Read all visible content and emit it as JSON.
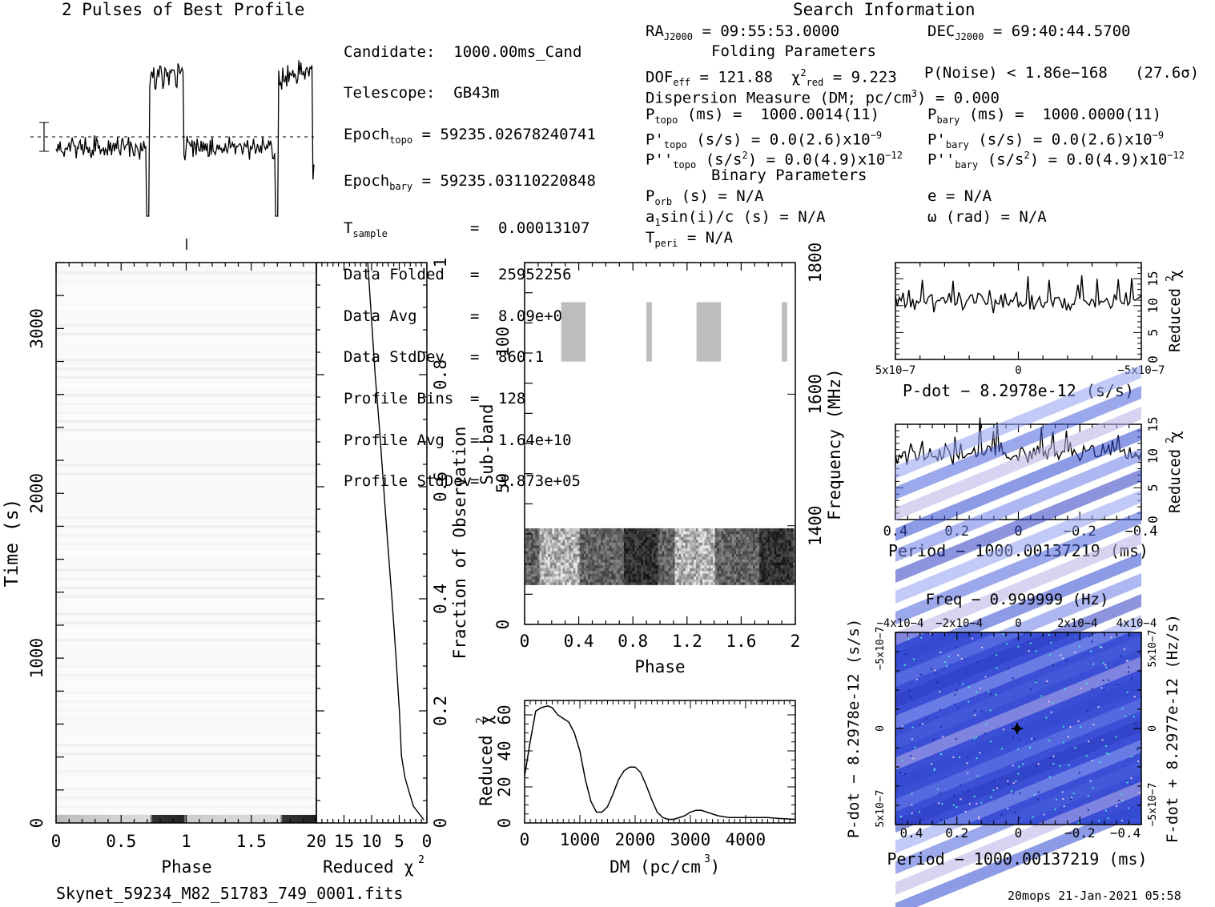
{
  "header": {
    "profile_title": "2 Pulses of Best Profile",
    "search_title": "Search Information",
    "folding_title": "Folding Parameters",
    "binary_title": "Binary Parameters"
  },
  "col1": [
    {
      "label": "Candidate:",
      "value": "1000.00ms_Cand"
    },
    {
      "label": "Telescope:",
      "value": "GB43m"
    },
    {
      "label": "Epoch",
      "sub": "topo",
      "sep": "=",
      "value": "59235.02678240741"
    },
    {
      "label": "Epoch",
      "sub": "bary",
      "sep": "=",
      "value": "59235.03110220848"
    },
    {
      "label": "T",
      "sub": "sample",
      "sep": "=",
      "value": "0.00013107"
    },
    {
      "label": "Data Folded",
      "sep": "=",
      "value": "25952256"
    },
    {
      "label": "Data Avg",
      "sep": "=",
      "value": "8.09e+04"
    },
    {
      "label": "Data StdDev",
      "sep": "=",
      "value": "860.1"
    },
    {
      "label": "Profile Bins",
      "sep": "=",
      "value": "128"
    },
    {
      "label": "Profile Avg",
      "sep": "=",
      "value": "1.64e+10"
    },
    {
      "label": "Profile StdDev",
      "sep": "=",
      "value": "3.873e+05"
    }
  ],
  "search": {
    "ra_label": "RA",
    "ra_sub": "J2000",
    "ra_value": "= 09:55:53.0000",
    "dec_label": "DEC",
    "dec_sub": "J2000",
    "dec_value": "= 69:40:44.5700"
  },
  "folding": {
    "dof_label": "DOF",
    "dof_sub": "eff",
    "dof_value": "= 121.88",
    "chi_label": "χ",
    "chi_sup": "2",
    "chi_sub": "red",
    "chi_value": "= 9.223",
    "noise": "P(Noise) < 1.86e−168   (27.6σ)",
    "dm_text": "Dispersion Measure (DM; pc/cm",
    "dm_sup": "3",
    "dm_value": ") = 0.000",
    "ptopo_label": "P",
    "ptopo_sub": "topo",
    "ptopo_value": "(ms) =  1000.0014(11)",
    "pbary_label": "P",
    "pbary_sub": "bary",
    "pbary_value": "(ms) =  1000.0000(11)",
    "pdtopo_label": "P'",
    "pdtopo_sub": "topo",
    "pdtopo_value": "(s/s) = 0.0(2.6)x10",
    "pdtopo_exp": "−9",
    "pdbary_label": "P'",
    "pdbary_sub": "bary",
    "pdbary_value": "(s/s) = 0.0(2.6)x10",
    "pdbary_exp": "−9",
    "pddtopo_label": "P''",
    "pddtopo_sub": "topo",
    "pddtopo_value": "(s/s",
    "pddtopo_sup": "2",
    "pddtopo_value2": ") = 0.0(4.9)x10",
    "pddtopo_exp": "−12",
    "pddbary_label": "P''",
    "pddbary_sub": "bary",
    "pddbary_value": "(s/s",
    "pddbary_sup": "2",
    "pddbary_value2": ") = 0.0(4.9)x10",
    "pddbary_exp": "−12"
  },
  "binary": {
    "porb_label": "P",
    "porb_sub": "orb",
    "porb_value": "(s) = N/A",
    "a1_label": "a",
    "a1_sub": "1",
    "a1_value": "sin(i)/c (s) = N/A",
    "tperi_label": "T",
    "tperi_sub": "peri",
    "tperi_value": "= N/A",
    "e_text": "e = N/A",
    "omega_text": "ω (rad) = N/A"
  },
  "footer": {
    "filename": "Skynet_59234_M82_51783_749_0001.fits",
    "stamp": "20mops 21-Jan-2021 05:58"
  },
  "chart_data": [
    {
      "id": "profile",
      "type": "line",
      "title": "2 Pulses of Best Profile",
      "x": "phase 0–2 (two pulses)",
      "xlim": [
        0,
        2
      ],
      "description_values": "noise baseline with two on-pulse plateaus near phase 0.72–0.98 and 1.72–1.98"
    },
    {
      "id": "time_phase",
      "type": "heatmap",
      "xlabel": "Phase",
      "ylabel": "Time (s)",
      "xlim": [
        0,
        2
      ],
      "ylim": [
        0,
        3400
      ],
      "x_ticks": [
        "0",
        "0.5",
        "1",
        "1.5"
      ],
      "y_ticks": [
        "0",
        "1000",
        "2000",
        "3000"
      ]
    },
    {
      "id": "chi_vs_time",
      "type": "line",
      "xlabel": "Reduced χ2",
      "ylabel": "Fraction of Observation",
      "xlim": [
        20,
        0
      ],
      "ylim": [
        0,
        1
      ],
      "x_ticks": [
        "20",
        "15",
        "10",
        "5",
        "0"
      ],
      "y_ticks": [
        "0",
        "0.2",
        "0.4",
        "0.6",
        "0.8",
        "1"
      ],
      "x": [
        0.6,
        2.5,
        4.0,
        4.5,
        5.0,
        5.6,
        6.4,
        7.1,
        7.9,
        8.6,
        9.4,
        10.8
      ],
      "y": [
        0.005,
        0.03,
        0.08,
        0.12,
        0.2,
        0.3,
        0.4,
        0.5,
        0.6,
        0.7,
        0.8,
        1.0
      ]
    },
    {
      "id": "subband_phase",
      "type": "heatmap",
      "xlabel": "Phase",
      "ylabel": "Sub-band",
      "y2label": "Frequency (MHz)",
      "xlim": [
        0,
        2
      ],
      "ylim": [
        0,
        128
      ],
      "y2lim": [
        1250,
        1800
      ],
      "x_ticks": [
        "0",
        "0.4",
        "0.8",
        "1.2",
        "1.6",
        "2"
      ],
      "y_ticks": [
        "0",
        "50",
        "100"
      ],
      "y2_ticks": [
        "1400",
        "1600",
        "1800"
      ]
    },
    {
      "id": "chi_vs_dm",
      "type": "line",
      "xlabel": "DM (pc/cm3)",
      "ylabel": "Reduced χ2",
      "xlim": [
        0,
        4900
      ],
      "ylim": [
        0,
        68
      ],
      "x_ticks": [
        "0",
        "1000",
        "2000",
        "3000",
        "4000"
      ],
      "y_ticks": [
        "0",
        "20",
        "40",
        "60"
      ],
      "x": [
        0,
        100,
        200,
        300,
        420,
        500,
        600,
        700,
        800,
        900,
        1000,
        1100,
        1200,
        1300,
        1400,
        1500,
        1600,
        1700,
        1800,
        1900,
        2000,
        2100,
        2200,
        2300,
        2400,
        2500,
        2600,
        2700,
        2800,
        2900,
        3000,
        3100,
        3200,
        3300,
        3400,
        3500,
        3600,
        3700,
        3800,
        3900,
        4000,
        4200,
        4400,
        4600,
        4900
      ],
      "y": [
        26,
        45,
        62,
        64,
        65,
        64,
        60,
        58,
        56,
        50,
        40,
        24,
        12,
        6,
        6,
        9,
        16,
        24,
        29,
        31,
        31,
        28,
        21,
        13,
        6,
        3,
        2,
        2,
        3,
        4,
        6,
        7,
        7,
        6,
        5,
        4,
        3.5,
        3,
        3,
        3,
        3,
        3,
        3,
        2.5,
        2
      ]
    },
    {
      "id": "chi_vs_pdot",
      "type": "line",
      "xlabel": "P-dot − 8.2978e-12 (s/s)",
      "ylabel": "Reduced χ2",
      "xlim": [
        "5x10−7",
        "−5x10−7"
      ],
      "ylim": [
        0,
        18
      ],
      "x_ticks": [
        "5x10−7",
        "0",
        "−5x10−7"
      ],
      "y_ticks": [
        "0",
        "5",
        "10",
        "15"
      ],
      "level_mean": 10.8
    },
    {
      "id": "chi_vs_period",
      "type": "line",
      "xlabel": "Period − 1000.00137219 (ms)",
      "ylabel": "Reduced χ2",
      "xlim": [
        0.45,
        -0.45
      ],
      "ylim": [
        0,
        15
      ],
      "x_ticks": [
        "0.4",
        "0.2",
        "0",
        "−0.2",
        "−0.4"
      ],
      "y_ticks": [
        "0",
        "5",
        "10",
        "15"
      ],
      "level_mean": 10.5
    },
    {
      "id": "period_pdot",
      "type": "heatmap",
      "title": "Freq − 0.999999 (Hz)",
      "xlabel": "Period − 1000.00137219 (ms)",
      "ylabel": "P-dot − 8.2978e-12 (s/s)",
      "y2label": "F-dot + 8.2977e-12 (Hz/s)",
      "x_ticks": [
        "0.4",
        "0.2",
        "0",
        "−0.2",
        "−0.4"
      ],
      "x2_ticks": [
        "−4x10−4",
        "−2x10−4",
        "0",
        "2x10−4",
        "4x10−4"
      ],
      "y_ticks": [
        "5x10−7",
        "0",
        "−5x10−7"
      ],
      "y2_ticks": [
        "−5x10−7",
        "0",
        "5x10−7"
      ]
    }
  ]
}
